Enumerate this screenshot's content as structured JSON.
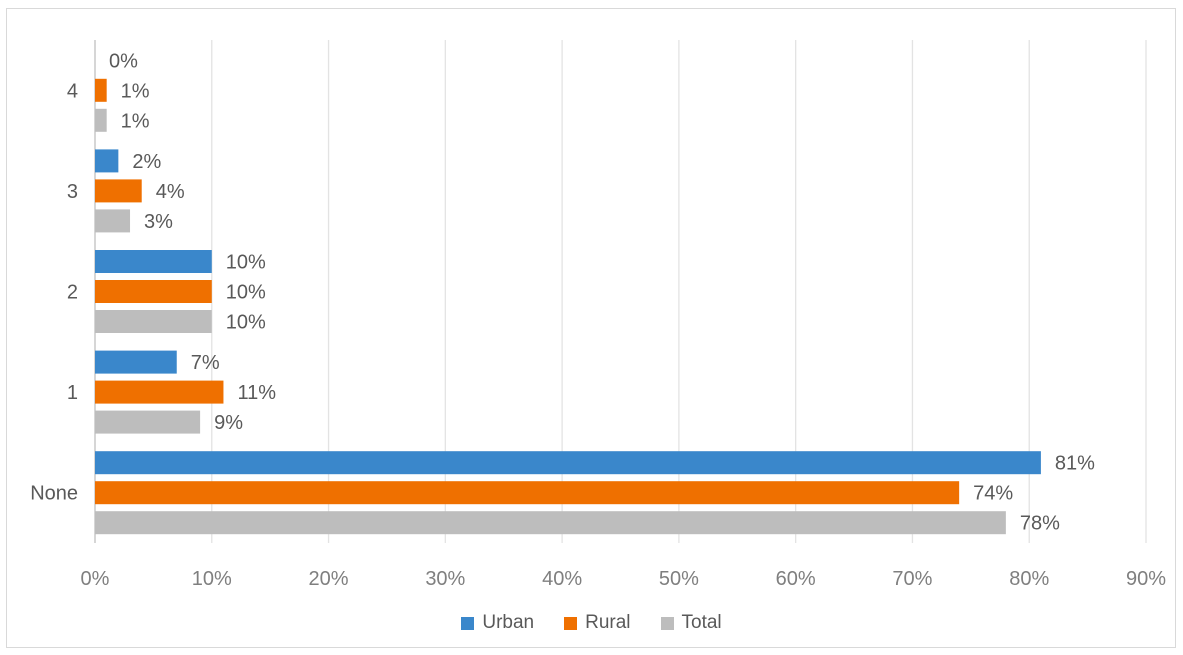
{
  "chart_data": {
    "type": "bar",
    "orientation": "horizontal",
    "categories": [
      "None",
      "1",
      "2",
      "3",
      "4"
    ],
    "series": [
      {
        "name": "Urban",
        "color": "#3a87cb",
        "values": [
          81,
          7,
          10,
          2,
          0
        ]
      },
      {
        "name": "Rural",
        "color": "#ef7000",
        "values": [
          74,
          11,
          10,
          4,
          1
        ]
      },
      {
        "name": "Total",
        "color": "#bdbdbd",
        "values": [
          78,
          9,
          10,
          3,
          1
        ]
      }
    ],
    "value_suffix": "%",
    "xlim": [
      0,
      90
    ],
    "x_ticks": [
      "0%",
      "10%",
      "20%",
      "30%",
      "40%",
      "50%",
      "60%",
      "70%",
      "80%",
      "90%"
    ],
    "grid": "vertical",
    "legend_position": "bottom",
    "title": "",
    "xlabel": "",
    "ylabel": ""
  }
}
